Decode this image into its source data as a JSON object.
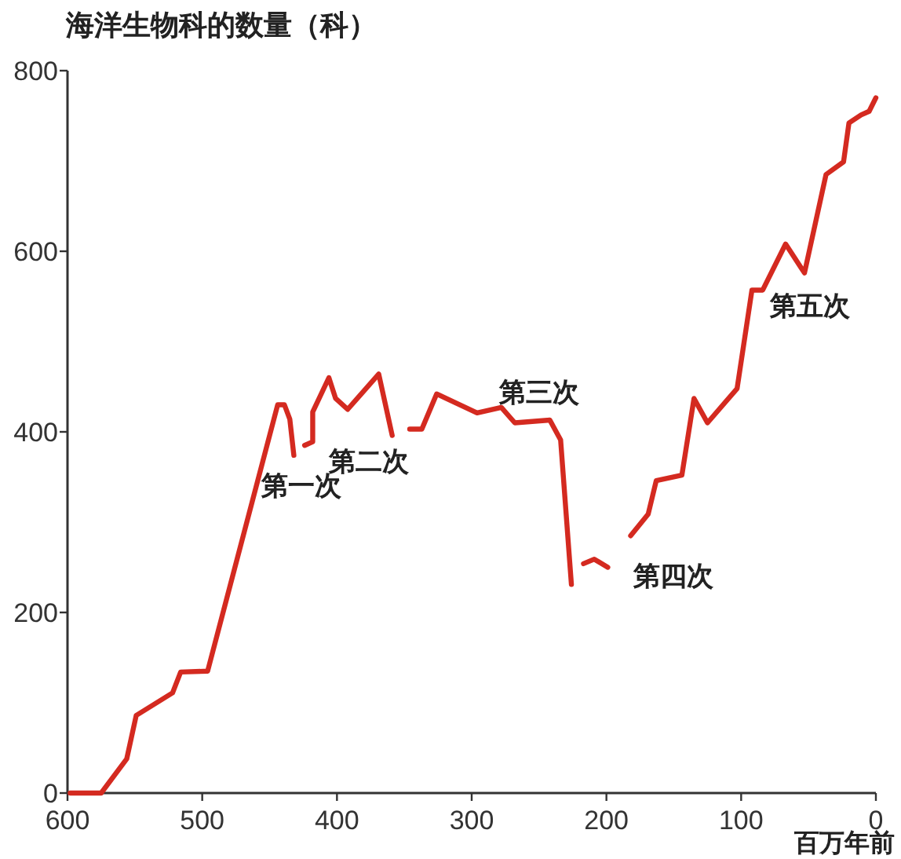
{
  "chart_data": {
    "type": "line",
    "ylabel": "海洋生物科的数量（科）",
    "xlabel": "百万年前",
    "xlim": [
      600,
      0
    ],
    "ylim": [
      0,
      800
    ],
    "xticks": [
      600,
      500,
      400,
      300,
      200,
      100,
      0
    ],
    "yticks": [
      0,
      200,
      400,
      600,
      800
    ],
    "grid": false,
    "marker": "none",
    "line_style": "solid",
    "series": [
      {
        "color": "#d42a20",
        "x": [
          598,
          587,
          575,
          556,
          549,
          522,
          516,
          496,
          444,
          439,
          435,
          432
        ],
        "values": [
          0,
          0,
          0,
          38,
          86,
          111,
          134,
          135,
          430,
          430,
          414,
          374
        ]
      },
      {
        "color": "#d42a20",
        "x": [
          424,
          418,
          418,
          406,
          401,
          392,
          369,
          359
        ],
        "values": [
          385,
          389,
          422,
          460,
          437,
          425,
          464,
          396
        ]
      },
      {
        "color": "#d42a20",
        "x": [
          346,
          337,
          326,
          296,
          278,
          268,
          242,
          234,
          226
        ],
        "values": [
          403,
          403,
          442,
          421,
          427,
          410,
          413,
          391,
          231
        ]
      },
      {
        "color": "#d42a20",
        "x": [
          217,
          209,
          199
        ],
        "values": [
          254,
          259,
          250
        ]
      },
      {
        "color": "#d42a20",
        "x": [
          182,
          169,
          163,
          144,
          135,
          125,
          103,
          92,
          84,
          67,
          53,
          37,
          24,
          20,
          11,
          5,
          0
        ],
        "values": [
          285,
          309,
          346,
          352,
          437,
          410,
          448,
          557,
          557,
          608,
          576,
          685,
          699,
          742,
          751,
          755,
          770
        ]
      }
    ],
    "annotations": [
      {
        "text": "第一次",
        "x": 432,
        "y": 374
      },
      {
        "text": "第二次",
        "x": 359,
        "y": 396
      },
      {
        "text": "第三次",
        "x": 242,
        "y": 413
      },
      {
        "text": "第四次",
        "x": 199,
        "y": 250
      },
      {
        "text": "第五次",
        "x": 84,
        "y": 557
      }
    ]
  }
}
